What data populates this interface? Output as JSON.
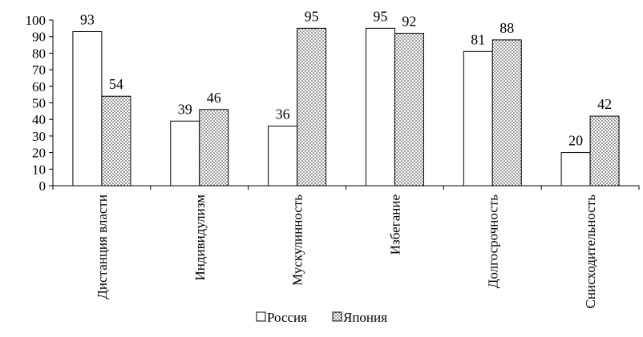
{
  "chart_data": {
    "type": "bar",
    "categories": [
      "Дистанция власти",
      "Индивидулизм",
      "Мускулинность",
      "Избегание",
      "Долгосрочность",
      "Снисходительность"
    ],
    "series": [
      {
        "name": "Россия",
        "values": [
          93,
          39,
          36,
          95,
          81,
          20
        ],
        "fill": "#ffffff",
        "pattern": "none"
      },
      {
        "name": "Япония",
        "values": [
          54,
          46,
          95,
          92,
          88,
          42
        ],
        "fill": "#ffffff",
        "pattern": "dots"
      }
    ],
    "ylim": [
      0,
      100
    ],
    "yticks": [
      0,
      10,
      20,
      30,
      40,
      50,
      60,
      70,
      80,
      90,
      100
    ],
    "grid": false,
    "legend_position": "bottom",
    "data_labels": true,
    "colors": {
      "stroke": "#000000",
      "dot": "#555555"
    }
  }
}
